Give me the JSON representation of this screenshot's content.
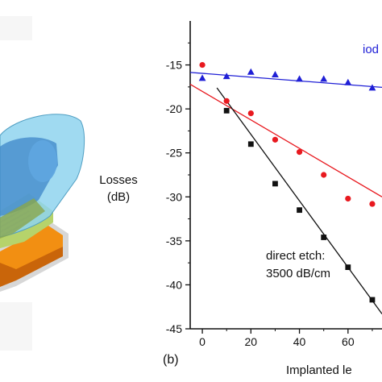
{
  "chart_data": {
    "type": "scatter",
    "panel_label": "(b)",
    "ylabel_lines": [
      "Losses",
      "(dB)"
    ],
    "xlabel": "Implanted le",
    "xlim": [
      -5,
      74
    ],
    "ylim": [
      -45,
      -10
    ],
    "x_ticks": [
      0,
      20,
      40,
      60
    ],
    "y_ticks": [
      -15,
      -20,
      -25,
      -30,
      -35,
      -40,
      -45
    ],
    "series": [
      {
        "name": "iod",
        "marker": "triangle",
        "color": "#1f1fd6",
        "points": [
          [
            0,
            -16.5
          ],
          [
            10,
            -16.3
          ],
          [
            20,
            -15.8
          ],
          [
            30,
            -16.1
          ],
          [
            40,
            -16.6
          ],
          [
            50,
            -16.6
          ],
          [
            60,
            -17.0
          ],
          [
            70,
            -17.6
          ]
        ],
        "fit": [
          [
            -5,
            -15.85
          ],
          [
            74,
            -17.55
          ]
        ]
      },
      {
        "name": "",
        "marker": "circle",
        "color": "#e8191f",
        "points": [
          [
            0,
            -15.0
          ],
          [
            10,
            -19.1
          ],
          [
            20,
            -20.5
          ],
          [
            30,
            -23.5
          ],
          [
            40,
            -24.9
          ],
          [
            50,
            -27.5
          ],
          [
            60,
            -30.2
          ],
          [
            70,
            -30.8
          ]
        ],
        "fit": [
          [
            -5,
            -17.2
          ],
          [
            74,
            -30.0
          ]
        ]
      },
      {
        "name": "direct etch",
        "marker": "square",
        "color": "#111111",
        "points": [
          [
            10,
            -20.2
          ],
          [
            20,
            -24.0
          ],
          [
            30,
            -28.5
          ],
          [
            40,
            -31.5
          ],
          [
            50,
            -34.6
          ],
          [
            60,
            -38.0
          ],
          [
            70,
            -41.7
          ]
        ],
        "fit": [
          [
            6,
            -17.6
          ],
          [
            74,
            -43.3
          ]
        ]
      }
    ],
    "annotations": {
      "series_label": "iod",
      "etch_line1": "direct etch:",
      "etch_line2": "3500 dB/cm"
    }
  },
  "colors": {
    "blue": "#1f1fd6",
    "red": "#e8191f",
    "black": "#111111"
  }
}
